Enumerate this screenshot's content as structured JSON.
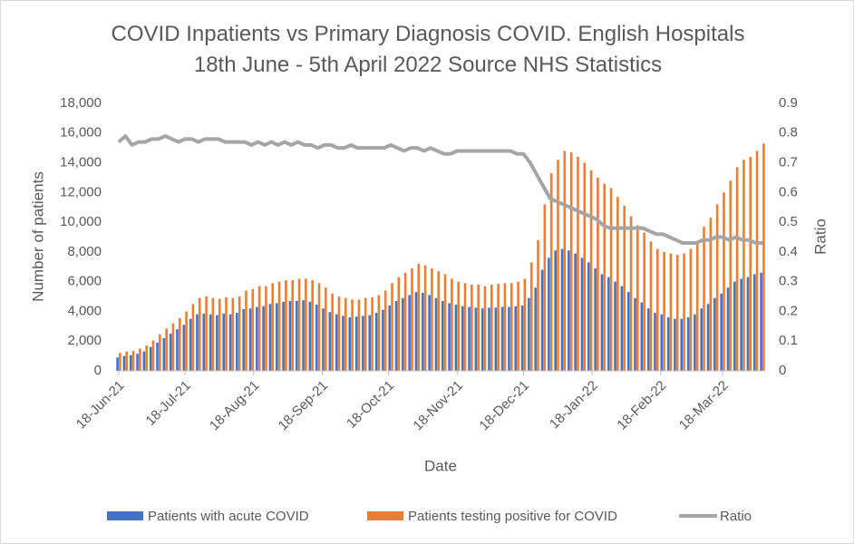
{
  "chart_data": {
    "type": "bar-line",
    "title": "COVID Inpatients vs Primary Diagnosis COVID. English Hospitals 18th June - 5th April 2022 Source NHS Statistics",
    "xlabel": "Date",
    "ylabel": "Number of patients",
    "y2label": "Ratio",
    "legend": "bottom",
    "x": [
      "2021-06-18",
      "2021-06-21",
      "2021-06-24",
      "2021-06-27",
      "2021-06-30",
      "2021-07-03",
      "2021-07-06",
      "2021-07-09",
      "2021-07-12",
      "2021-07-15",
      "2021-07-18",
      "2021-07-21",
      "2021-07-24",
      "2021-07-27",
      "2021-07-30",
      "2021-08-02",
      "2021-08-05",
      "2021-08-08",
      "2021-08-11",
      "2021-08-14",
      "2021-08-17",
      "2021-08-20",
      "2021-08-23",
      "2021-08-26",
      "2021-08-29",
      "2021-09-01",
      "2021-09-04",
      "2021-09-07",
      "2021-09-10",
      "2021-09-13",
      "2021-09-16",
      "2021-09-19",
      "2021-09-22",
      "2021-09-25",
      "2021-09-28",
      "2021-10-01",
      "2021-10-04",
      "2021-10-07",
      "2021-10-10",
      "2021-10-13",
      "2021-10-16",
      "2021-10-19",
      "2021-10-22",
      "2021-10-25",
      "2021-10-28",
      "2021-10-31",
      "2021-11-03",
      "2021-11-06",
      "2021-11-09",
      "2021-11-12",
      "2021-11-15",
      "2021-11-18",
      "2021-11-21",
      "2021-11-24",
      "2021-11-27",
      "2021-11-30",
      "2021-12-03",
      "2021-12-06",
      "2021-12-09",
      "2021-12-12",
      "2021-12-15",
      "2021-12-18",
      "2021-12-21",
      "2021-12-24",
      "2021-12-27",
      "2021-12-30",
      "2022-01-02",
      "2022-01-05",
      "2022-01-08",
      "2022-01-11",
      "2022-01-14",
      "2022-01-17",
      "2022-01-20",
      "2022-01-23",
      "2022-01-26",
      "2022-01-29",
      "2022-02-01",
      "2022-02-04",
      "2022-02-07",
      "2022-02-10",
      "2022-02-13",
      "2022-02-16",
      "2022-02-19",
      "2022-02-22",
      "2022-02-25",
      "2022-02-28",
      "2022-03-03",
      "2022-03-06",
      "2022-03-09",
      "2022-03-12",
      "2022-03-15",
      "2022-03-18",
      "2022-03-21",
      "2022-03-24",
      "2022-03-27",
      "2022-03-30",
      "2022-04-02",
      "2022-04-05"
    ],
    "series": [
      {
        "name": "Patients with acute COVID",
        "color": "#4472c4",
        "values": [
          900,
          1000,
          1050,
          1150,
          1300,
          1600,
          1900,
          2200,
          2500,
          2800,
          3100,
          3500,
          3800,
          3850,
          3800,
          3750,
          3850,
          3800,
          3900,
          4150,
          4200,
          4300,
          4350,
          4500,
          4550,
          4650,
          4700,
          4700,
          4750,
          4650,
          4450,
          4200,
          3950,
          3800,
          3700,
          3600,
          3650,
          3700,
          3750,
          3900,
          4100,
          4400,
          4700,
          4900,
          5100,
          5300,
          5250,
          5100,
          4900,
          4700,
          4550,
          4450,
          4350,
          4300,
          4250,
          4200,
          4250,
          4250,
          4300,
          4300,
          4350,
          4400,
          4900,
          5600,
          6800,
          7600,
          8100,
          8200,
          8100,
          7900,
          7600,
          7300,
          6900,
          6500,
          6300,
          6000,
          5700,
          5300,
          4900,
          4600,
          4200,
          3900,
          3800,
          3600,
          3500,
          3500,
          3600,
          3800,
          4200,
          4500,
          4900,
          5200,
          5600,
          6000,
          6200,
          6300,
          6500,
          6600
        ]
      },
      {
        "name": "Patients testing positive for COVID",
        "color": "#ed7d31",
        "values": [
          1200,
          1300,
          1350,
          1500,
          1700,
          2050,
          2450,
          2850,
          3200,
          3550,
          4000,
          4500,
          4900,
          5000,
          4900,
          4850,
          4950,
          4900,
          5000,
          5400,
          5500,
          5700,
          5700,
          5900,
          6000,
          6100,
          6100,
          6200,
          6200,
          6100,
          5900,
          5600,
          5200,
          5000,
          4900,
          4800,
          4800,
          4900,
          4950,
          5100,
          5400,
          5900,
          6300,
          6600,
          6900,
          7200,
          7100,
          6900,
          6700,
          6500,
          6200,
          6000,
          5900,
          5800,
          5800,
          5700,
          5800,
          5850,
          5900,
          5900,
          6000,
          6200,
          7300,
          8800,
          11200,
          13300,
          14200,
          14800,
          14700,
          14400,
          14000,
          13500,
          13000,
          12600,
          12300,
          11700,
          11100,
          10400,
          9800,
          9300,
          8700,
          8200,
          8000,
          7900,
          7800,
          7900,
          8200,
          8700,
          9700,
          10300,
          11200,
          12000,
          12800,
          13700,
          14200,
          14400,
          14800,
          15300
        ]
      },
      {
        "name": "Ratio",
        "color": "#a5a5a5",
        "axis": "y2",
        "values": [
          0.77,
          0.79,
          0.76,
          0.77,
          0.77,
          0.78,
          0.78,
          0.79,
          0.78,
          0.77,
          0.78,
          0.78,
          0.77,
          0.78,
          0.78,
          0.78,
          0.77,
          0.77,
          0.77,
          0.77,
          0.76,
          0.77,
          0.76,
          0.77,
          0.76,
          0.77,
          0.76,
          0.77,
          0.76,
          0.76,
          0.75,
          0.76,
          0.76,
          0.75,
          0.75,
          0.76,
          0.75,
          0.75,
          0.75,
          0.75,
          0.75,
          0.76,
          0.75,
          0.74,
          0.75,
          0.75,
          0.74,
          0.75,
          0.74,
          0.73,
          0.73,
          0.74,
          0.74,
          0.74,
          0.74,
          0.74,
          0.74,
          0.74,
          0.74,
          0.74,
          0.73,
          0.73,
          0.7,
          0.66,
          0.62,
          0.58,
          0.57,
          0.56,
          0.55,
          0.54,
          0.53,
          0.52,
          0.51,
          0.49,
          0.48,
          0.48,
          0.48,
          0.48,
          0.48,
          0.48,
          0.47,
          0.46,
          0.46,
          0.45,
          0.44,
          0.43,
          0.43,
          0.43,
          0.44,
          0.44,
          0.45,
          0.45,
          0.44,
          0.45,
          0.44,
          0.44,
          0.43,
          0.43
        ]
      }
    ],
    "xlim": [
      "2021-06-18",
      "2022-04-05"
    ],
    "xticks": [
      {
        "value": "2021-06-18",
        "label": "18-Jun-21"
      },
      {
        "value": "2021-07-18",
        "label": "18-Jul-21"
      },
      {
        "value": "2021-08-18",
        "label": "18-Aug-21"
      },
      {
        "value": "2021-09-18",
        "label": "18-Sep-21"
      },
      {
        "value": "2021-10-18",
        "label": "18-Oct-21"
      },
      {
        "value": "2021-11-18",
        "label": "18-Nov-21"
      },
      {
        "value": "2021-12-18",
        "label": "18-Dec-21"
      },
      {
        "value": "2022-01-18",
        "label": "18-Jan-22"
      },
      {
        "value": "2022-02-18",
        "label": "18-Feb-22"
      },
      {
        "value": "2022-03-18",
        "label": "18-Mar-22"
      }
    ],
    "ylim": [
      0,
      18000
    ],
    "yticks": [
      0,
      {
        "value": 2000,
        "label": "2,000"
      },
      {
        "value": 4000,
        "label": "4,000"
      },
      {
        "value": 6000,
        "label": "6,000"
      },
      {
        "value": 8000,
        "label": "8,000"
      },
      {
        "value": 10000,
        "label": "10,000"
      },
      {
        "value": 12000,
        "label": "12,000"
      },
      {
        "value": 14000,
        "label": "14,000"
      },
      {
        "value": 16000,
        "label": "16,000"
      },
      {
        "value": 18000,
        "label": "18,000"
      }
    ],
    "y2lim": [
      0,
      0.9
    ],
    "y2ticks": [
      0,
      0.1,
      0.2,
      0.3,
      0.4,
      0.5,
      0.6,
      0.7,
      0.8,
      0.9
    ]
  }
}
